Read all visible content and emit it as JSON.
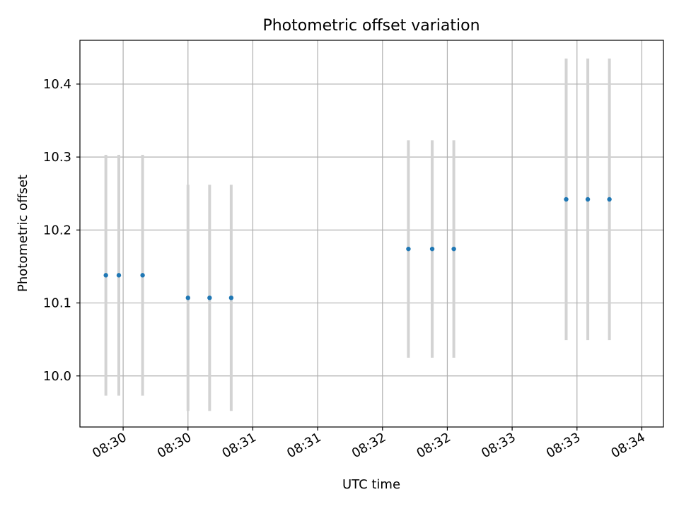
{
  "chart_data": {
    "type": "scatter",
    "title": "Photometric offset variation",
    "xlabel": "UTC time",
    "ylabel": "Photometric offset",
    "grid": true,
    "ylim": [
      9.93,
      10.46
    ],
    "yticks": [
      "10.0",
      "10.1",
      "10.2",
      "10.3",
      "10.4"
    ],
    "xlim": [
      "08:29:40",
      "08:34:10"
    ],
    "xticks": [
      {
        "t": "08:30:00",
        "label": "08:30"
      },
      {
        "t": "08:30:30",
        "label": "08:30"
      },
      {
        "t": "08:31:00",
        "label": "08:31"
      },
      {
        "t": "08:31:30",
        "label": "08:31"
      },
      {
        "t": "08:32:00",
        "label": "08:32"
      },
      {
        "t": "08:32:30",
        "label": "08:32"
      },
      {
        "t": "08:33:00",
        "label": "08:33"
      },
      {
        "t": "08:33:30",
        "label": "08:33"
      },
      {
        "t": "08:34:00",
        "label": "08:34"
      }
    ],
    "marker_color": "#1f77b4",
    "errorbar_color": "#d3d3d3",
    "points": [
      {
        "x": "08:29:52",
        "y": 10.138,
        "err": 0.165
      },
      {
        "x": "08:29:58",
        "y": 10.138,
        "err": 0.165
      },
      {
        "x": "08:30:09",
        "y": 10.138,
        "err": 0.165
      },
      {
        "x": "08:30:30",
        "y": 10.107,
        "err": 0.155
      },
      {
        "x": "08:30:40",
        "y": 10.107,
        "err": 0.155
      },
      {
        "x": "08:30:50",
        "y": 10.107,
        "err": 0.155
      },
      {
        "x": "08:32:12",
        "y": 10.174,
        "err": 0.149
      },
      {
        "x": "08:32:23",
        "y": 10.174,
        "err": 0.149
      },
      {
        "x": "08:32:33",
        "y": 10.174,
        "err": 0.149
      },
      {
        "x": "08:33:25",
        "y": 10.242,
        "err": 0.193
      },
      {
        "x": "08:33:35",
        "y": 10.242,
        "err": 0.193
      },
      {
        "x": "08:33:45",
        "y": 10.242,
        "err": 0.193
      }
    ]
  }
}
